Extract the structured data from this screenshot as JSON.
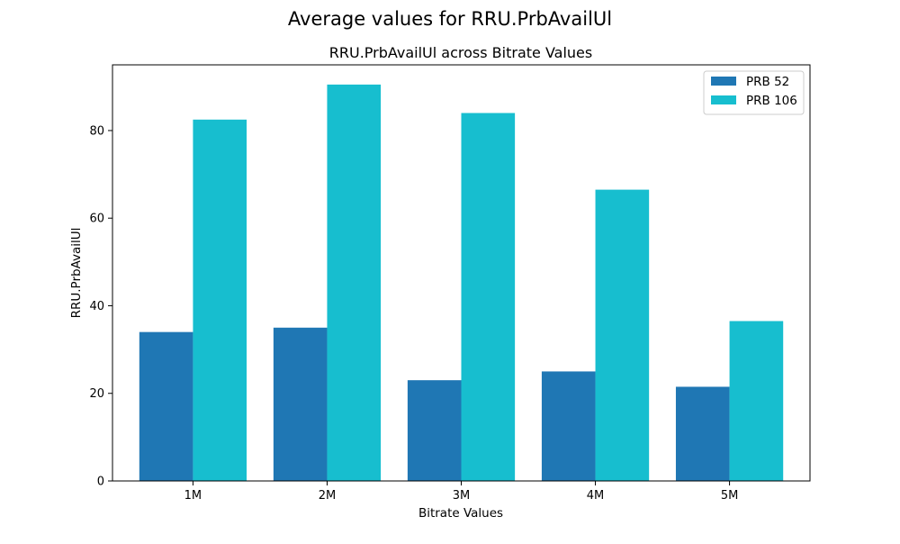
{
  "figure": {
    "suptitle": "Average values for RRU.PrbAvailUl"
  },
  "chart_data": {
    "type": "bar",
    "title": "RRU.PrbAvailUl across Bitrate Values",
    "xlabel": "Bitrate Values",
    "ylabel": "RRU.PrbAvailUl",
    "categories": [
      "1M",
      "2M",
      "3M",
      "4M",
      "5M"
    ],
    "series": [
      {
        "name": "PRB 52",
        "color": "#1f77b4",
        "values": [
          34.0,
          35.0,
          23.0,
          25.0,
          21.5
        ]
      },
      {
        "name": "PRB 106",
        "color": "#17becf",
        "values": [
          82.5,
          90.5,
          84.0,
          66.5,
          36.5
        ]
      }
    ],
    "ylim": [
      0,
      95
    ],
    "yticks": [
      0,
      20,
      40,
      60,
      80
    ],
    "grid": false,
    "legend_position": "top-right"
  }
}
